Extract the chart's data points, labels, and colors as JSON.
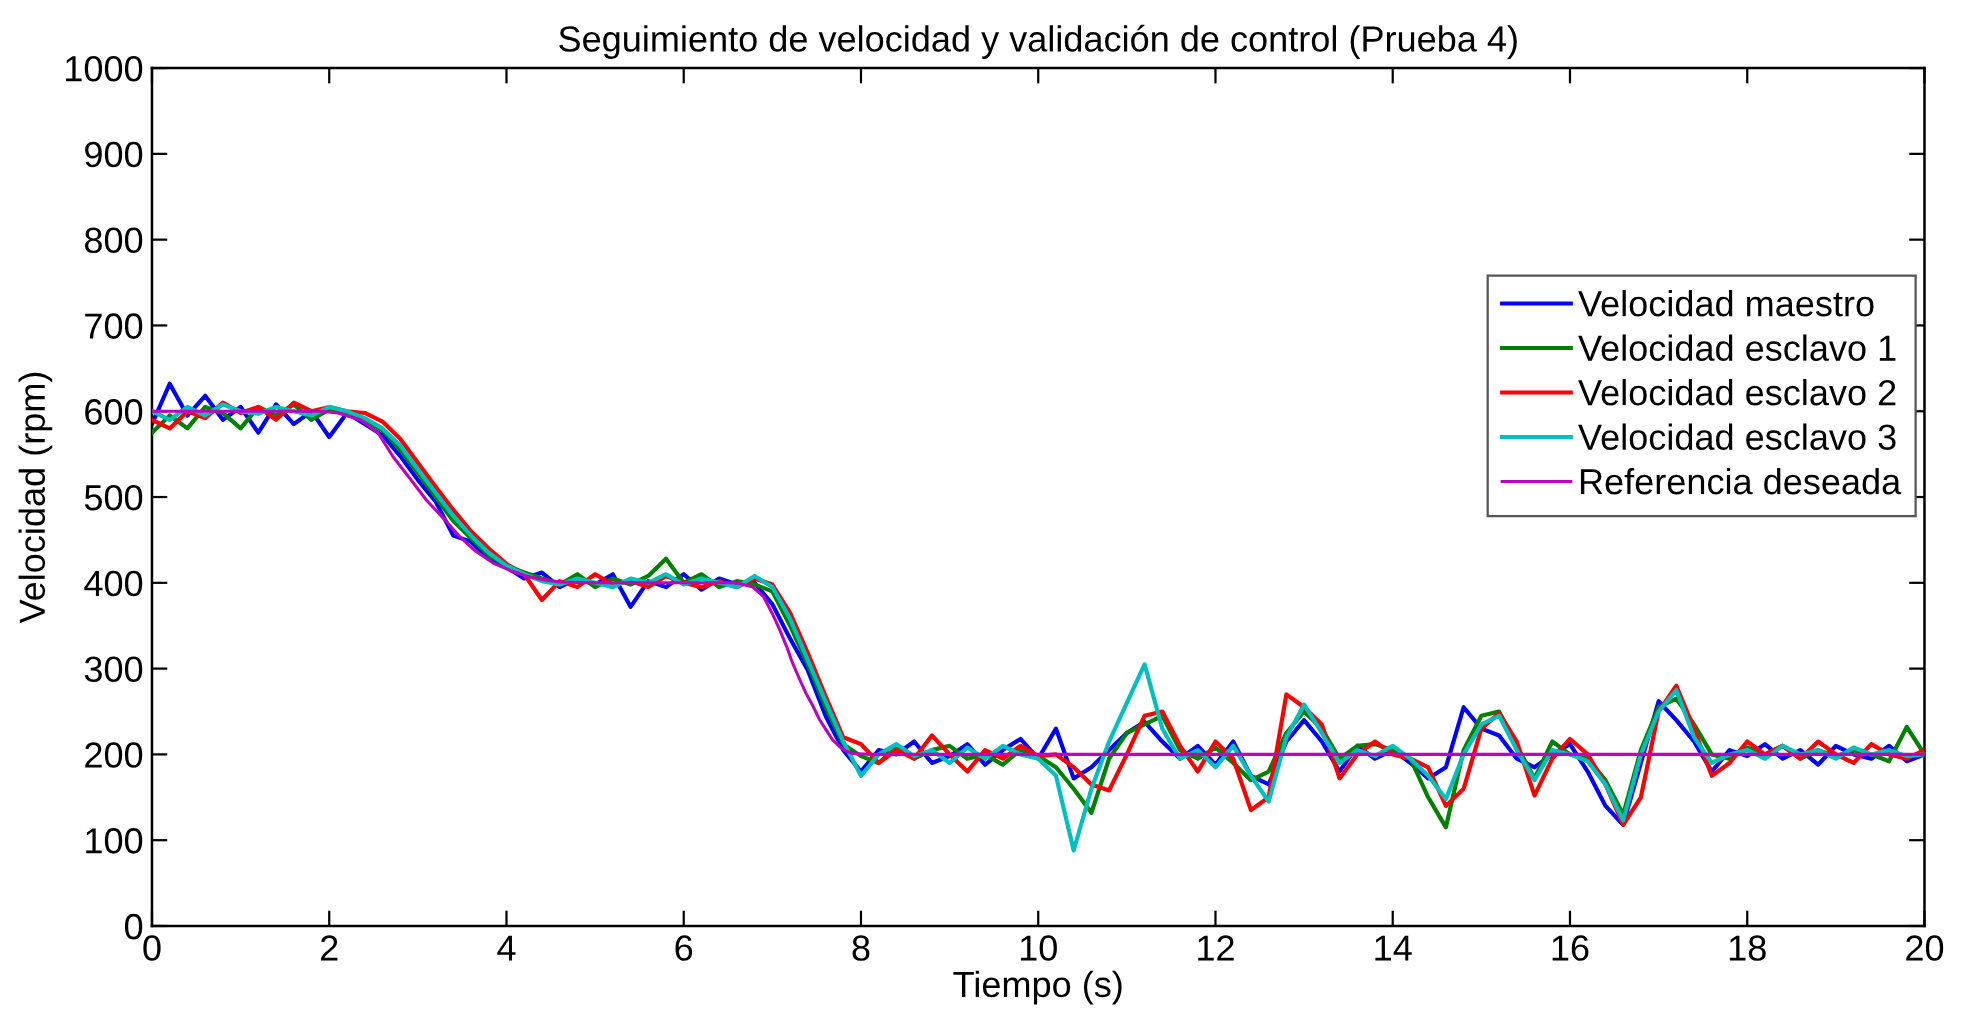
{
  "chart_data": {
    "type": "line",
    "title": "Seguimiento de velocidad y validación de control (Prueba 4)",
    "xlabel": "Tiempo (s)",
    "ylabel": "Velocidad (rpm)",
    "x": [
      0,
      0.2,
      0.4,
      0.6,
      0.8,
      1,
      1.2,
      1.4,
      1.6,
      1.8,
      2,
      2.2,
      2.4,
      2.6,
      2.8,
      3,
      3.2,
      3.4,
      3.6,
      3.8,
      4,
      4.2,
      4.4,
      4.6,
      4.8,
      5,
      5.2,
      5.4,
      5.6,
      5.8,
      6,
      6.2,
      6.4,
      6.6,
      6.8,
      7,
      7.2,
      7.4,
      7.6,
      7.8,
      8,
      8.2,
      8.4,
      8.6,
      8.8,
      9,
      9.2,
      9.4,
      9.6,
      9.8,
      10,
      10.2,
      10.4,
      10.6,
      10.8,
      11,
      11.2,
      11.4,
      11.6,
      11.8,
      12,
      12.2,
      12.4,
      12.6,
      12.8,
      13,
      13.2,
      13.4,
      13.6,
      13.8,
      14,
      14.2,
      14.4,
      14.6,
      14.8,
      15,
      15.2,
      15.4,
      15.6,
      15.8,
      16,
      16.2,
      16.4,
      16.6,
      16.8,
      17,
      17.2,
      17.4,
      17.6,
      17.8,
      18,
      18.2,
      18.4,
      18.6,
      18.8,
      19,
      19.2,
      19.4,
      19.6,
      19.8,
      20
    ],
    "series": [
      {
        "name": "Velocidad maestro",
        "color": "#0000ff",
        "values": [
          585,
          632,
          595,
          618,
          590,
          605,
          575,
          608,
          585,
          600,
          570,
          598,
          585,
          572,
          548,
          520,
          495,
          455,
          448,
          428,
          418,
          405,
          412,
          395,
          405,
          398,
          410,
          372,
          402,
          395,
          410,
          392,
          405,
          398,
          400,
          375,
          335,
          298,
          245,
          205,
          180,
          205,
          200,
          215,
          190,
          198,
          212,
          188,
          205,
          218,
          195,
          230,
          172,
          185,
          205,
          225,
          238,
          215,
          195,
          210,
          188,
          215,
          175,
          165,
          215,
          240,
          215,
          180,
          210,
          195,
          205,
          190,
          172,
          185,
          255,
          230,
          222,
          195,
          185,
          200,
          212,
          180,
          140,
          118,
          190,
          262,
          240,
          215,
          180,
          205,
          198,
          212,
          195,
          205,
          188,
          210,
          200,
          195,
          210,
          192,
          200
        ]
      },
      {
        "name": "Velocidad esclavo 1",
        "color": "#008000",
        "values": [
          575,
          595,
          580,
          605,
          598,
          580,
          605,
          595,
          608,
          590,
          602,
          597,
          590,
          578,
          555,
          528,
          500,
          472,
          452,
          432,
          420,
          412,
          405,
          398,
          410,
          395,
          405,
          398,
          408,
          428,
          400,
          410,
          395,
          402,
          398,
          390,
          350,
          305,
          255,
          212,
          198,
          190,
          208,
          195,
          205,
          210,
          195,
          200,
          188,
          205,
          198,
          185,
          160,
          132,
          195,
          225,
          235,
          245,
          205,
          195,
          208,
          190,
          170,
          180,
          225,
          250,
          230,
          195,
          210,
          212,
          205,
          195,
          150,
          115,
          205,
          245,
          250,
          210,
          172,
          215,
          200,
          195,
          170,
          130,
          205,
          255,
          265,
          235,
          200,
          195,
          208,
          200,
          210,
          195,
          205,
          198,
          205,
          200,
          192,
          232,
          200
        ]
      },
      {
        "name": "Velocidad esclavo 2",
        "color": "#ff0000",
        "values": [
          590,
          580,
          600,
          592,
          610,
          598,
          605,
          590,
          610,
          600,
          605,
          600,
          598,
          588,
          568,
          540,
          512,
          485,
          460,
          440,
          422,
          410,
          380,
          402,
          395,
          410,
          398,
          402,
          395,
          408,
          400,
          395,
          402,
          395,
          405,
          398,
          365,
          318,
          268,
          220,
          212,
          190,
          205,
          195,
          222,
          200,
          180,
          205,
          195,
          210,
          198,
          200,
          185,
          165,
          158,
          200,
          245,
          250,
          210,
          180,
          215,
          195,
          135,
          150,
          270,
          255,
          235,
          172,
          200,
          215,
          200,
          195,
          185,
          140,
          160,
          230,
          248,
          215,
          152,
          195,
          218,
          200,
          165,
          118,
          150,
          250,
          280,
          230,
          175,
          190,
          215,
          200,
          210,
          195,
          215,
          200,
          190,
          212,
          200,
          195,
          205
        ]
      },
      {
        "name": "Velocidad esclavo 3",
        "color": "#00bfbf",
        "values": [
          600,
          590,
          605,
          595,
          608,
          600,
          597,
          605,
          600,
          595,
          605,
          600,
          592,
          580,
          560,
          532,
          505,
          478,
          455,
          435,
          420,
          410,
          402,
          398,
          405,
          400,
          395,
          405,
          400,
          410,
          398,
          405,
          400,
          395,
          408,
          395,
          358,
          310,
          262,
          215,
          175,
          200,
          212,
          198,
          205,
          190,
          208,
          195,
          210,
          200,
          195,
          175,
          88,
          160,
          215,
          260,
          305,
          230,
          195,
          205,
          185,
          210,
          175,
          145,
          220,
          258,
          225,
          190,
          205,
          198,
          210,
          195,
          175,
          148,
          200,
          235,
          245,
          205,
          170,
          205,
          200,
          192,
          165,
          123,
          200,
          250,
          275,
          220,
          190,
          200,
          205,
          195,
          210,
          200,
          205,
          195,
          208,
          200,
          205,
          198,
          200
        ]
      },
      {
        "name": "Referencia deseada",
        "color": "#bf00bf",
        "x": [
          0,
          1.9,
          2.1,
          2.35,
          2.55,
          2.72,
          2.9,
          3.1,
          3.3,
          3.47,
          3.65,
          3.85,
          4.05,
          4.22,
          4.4,
          4.6,
          4.9,
          5.3,
          6.6,
          6.78,
          6.9,
          7.0,
          7.08,
          7.16,
          7.23,
          7.31,
          7.38,
          7.46,
          7.53,
          7.61,
          7.68,
          7.76,
          7.83,
          7.91,
          8.1,
          20
        ],
        "values": [
          600,
          600,
          598,
          590,
          575,
          547,
          523,
          496,
          474,
          454,
          437,
          423,
          414,
          408,
          404,
          401,
          400,
          400,
          400,
          395,
          384,
          364,
          346,
          326,
          306,
          287,
          271,
          256,
          241,
          228,
          217,
          209,
          204,
          201,
          200,
          200
        ]
      }
    ],
    "xlim": [
      0,
      20
    ],
    "ylim": [
      0,
      1000
    ],
    "xticks": [
      0,
      2,
      4,
      6,
      8,
      10,
      12,
      14,
      16,
      18,
      20
    ],
    "yticks": [
      0,
      100,
      200,
      300,
      400,
      500,
      600,
      700,
      800,
      900,
      1000
    ],
    "legend": "right"
  }
}
